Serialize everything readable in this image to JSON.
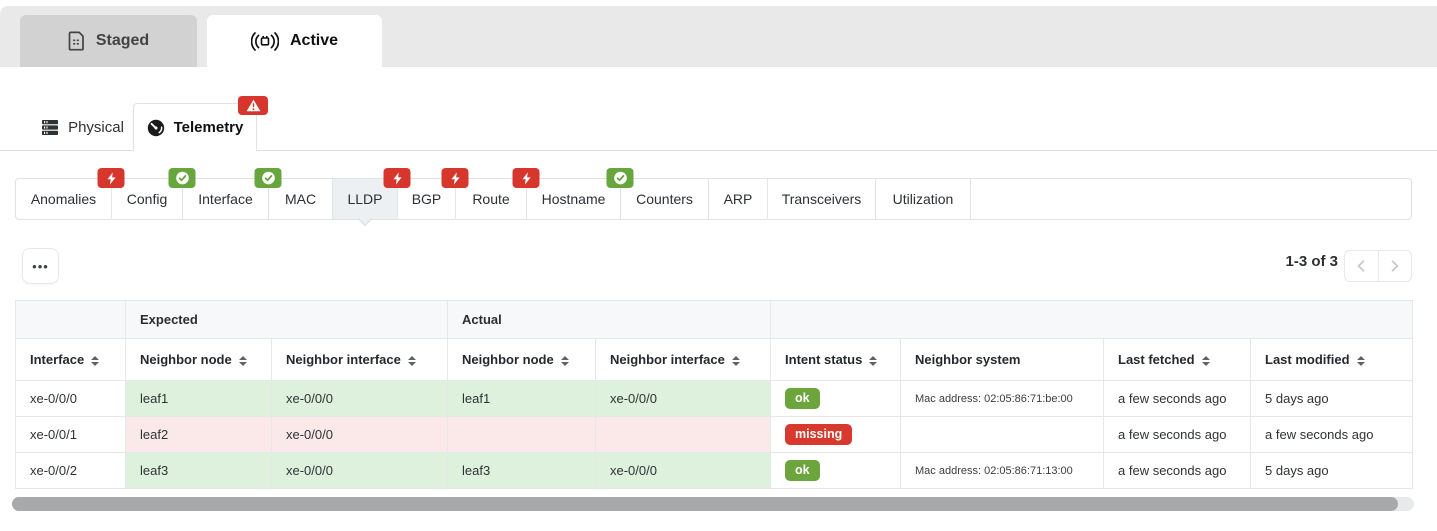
{
  "top_tabs": {
    "staged": {
      "label": "Staged"
    },
    "active": {
      "label": "Active"
    }
  },
  "view_tabs": {
    "physical": {
      "label": "Physical"
    },
    "telemetry": {
      "label": "Telemetry",
      "badge": "warning"
    }
  },
  "telemetry_tabs": [
    {
      "label": "Anomalies",
      "badge": "error",
      "active": false
    },
    {
      "label": "Config",
      "badge": "success",
      "active": false
    },
    {
      "label": "Interface",
      "badge": "success",
      "active": false
    },
    {
      "label": "MAC",
      "badge": null,
      "active": false
    },
    {
      "label": "LLDP",
      "badge": "error",
      "active": true
    },
    {
      "label": "BGP",
      "badge": "error",
      "active": false
    },
    {
      "label": "Route",
      "badge": "error",
      "active": false
    },
    {
      "label": "Hostname",
      "badge": "success",
      "active": false
    },
    {
      "label": "Counters",
      "badge": null,
      "active": false
    },
    {
      "label": "ARP",
      "badge": null,
      "active": false
    },
    {
      "label": "Transceivers",
      "badge": null,
      "active": false
    },
    {
      "label": "Utilization",
      "badge": null,
      "active": false
    }
  ],
  "toolbar": {
    "more_label": "•••",
    "range_label": "1-3 of 3"
  },
  "table": {
    "group_headers": [
      {
        "label": "",
        "span": 1
      },
      {
        "label": "Expected",
        "span": 2
      },
      {
        "label": "Actual",
        "span": 2
      },
      {
        "label": "",
        "span": 4
      }
    ],
    "columns": [
      {
        "label": "Interface",
        "sortable": true
      },
      {
        "label": "Neighbor node",
        "sortable": true
      },
      {
        "label": "Neighbor interface",
        "sortable": true
      },
      {
        "label": "Neighbor node",
        "sortable": true
      },
      {
        "label": "Neighbor interface",
        "sortable": true
      },
      {
        "label": "Intent status",
        "sortable": true
      },
      {
        "label": "Neighbor system",
        "sortable": false
      },
      {
        "label": "Last fetched",
        "sortable": true
      },
      {
        "label": "Last modified",
        "sortable": true
      }
    ],
    "rows": [
      {
        "interface": "xe-0/0/0",
        "expected_neighbor_node": "leaf1",
        "expected_neighbor_interface": "xe-0/0/0",
        "actual_neighbor_node": "leaf1",
        "actual_neighbor_interface": "xe-0/0/0",
        "intent_status": "ok",
        "neighbor_system": "Mac address: 02:05:86:71:be:00",
        "last_fetched": "a few seconds ago",
        "last_modified": "5 days ago",
        "highlight": "success"
      },
      {
        "interface": "xe-0/0/1",
        "expected_neighbor_node": "leaf2",
        "expected_neighbor_interface": "xe-0/0/0",
        "actual_neighbor_node": "",
        "actual_neighbor_interface": "",
        "intent_status": "missing",
        "neighbor_system": "",
        "last_fetched": "a few seconds ago",
        "last_modified": "a few seconds ago",
        "highlight": "error"
      },
      {
        "interface": "xe-0/0/2",
        "expected_neighbor_node": "leaf3",
        "expected_neighbor_interface": "xe-0/0/0",
        "actual_neighbor_node": "leaf3",
        "actual_neighbor_interface": "xe-0/0/0",
        "intent_status": "ok",
        "neighbor_system": "Mac address: 02:05:86:71:13:00",
        "last_fetched": "a few seconds ago",
        "last_modified": "5 days ago",
        "highlight": "success"
      }
    ]
  },
  "colors": {
    "badge_error": "#d7362c",
    "badge_success": "#67a63c",
    "status_ok": "#6ba53c",
    "status_missing": "#d8392e",
    "cell_success": "#ddf1dd",
    "cell_error": "#fbe9e9",
    "selected_subtab_bg": "#ecf0f2",
    "top_strip_bg": "#e9e9e9",
    "staged_tab_bg": "#d2d2d2"
  }
}
